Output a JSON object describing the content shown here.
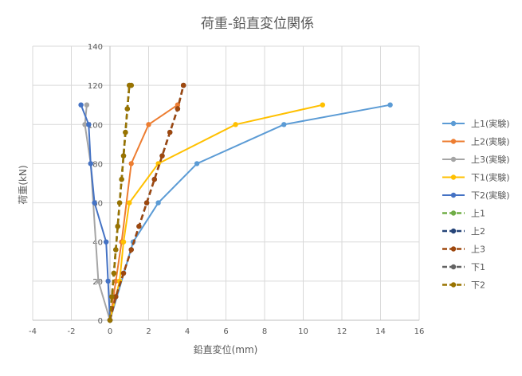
{
  "chart_data": {
    "type": "scatter",
    "title": "荷重-鉛直変位関係",
    "xlabel": "鉛直変位(mm)",
    "ylabel": "荷重(kN)",
    "xlim": [
      -4,
      16
    ],
    "ylim": [
      0,
      140
    ],
    "xticks": [
      -4,
      -2,
      0,
      2,
      4,
      6,
      8,
      10,
      12,
      14,
      16
    ],
    "yticks": [
      0,
      20,
      40,
      60,
      80,
      100,
      120,
      140
    ],
    "grid": "vertical-and-horizontal",
    "legend_position": "right",
    "series": [
      {
        "name": "上1(実験)",
        "color": "#5B9BD5",
        "dash": false,
        "x": [
          0,
          1.2,
          2.5,
          4.5,
          9.0,
          14.5
        ],
        "y": [
          0,
          40,
          60,
          80,
          100,
          110
        ]
      },
      {
        "name": "上2(実験)",
        "color": "#ED7D31",
        "dash": false,
        "x": [
          0,
          0.3,
          0.6,
          1.1,
          2.0,
          3.5
        ],
        "y": [
          0,
          20,
          40,
          80,
          100,
          110
        ]
      },
      {
        "name": "上3(実験)",
        "color": "#A5A5A5",
        "dash": false,
        "x": [
          0,
          -0.6,
          -1.0,
          -1.3,
          -1.2
        ],
        "y": [
          0,
          20,
          80,
          100,
          110
        ]
      },
      {
        "name": "下1(実験)",
        "color": "#FFC000",
        "dash": false,
        "x": [
          0,
          0.5,
          0.7,
          1.0,
          2.5,
          6.5,
          11.0
        ],
        "y": [
          0,
          20,
          40,
          60,
          80,
          100,
          110
        ]
      },
      {
        "name": "下2(実験)",
        "color": "#4472C4",
        "dash": false,
        "x": [
          0,
          -0.1,
          -0.2,
          -0.8,
          -1.0,
          -1.1,
          -1.5
        ],
        "y": [
          0,
          20,
          40,
          60,
          80,
          100,
          110
        ]
      },
      {
        "name": "上1",
        "color": "#70AD47",
        "dash": true,
        "x": [
          0,
          0.1,
          0.2,
          0.3,
          0.4,
          0.5,
          0.6,
          0.7,
          0.8,
          0.9,
          1.0,
          1.1
        ],
        "y": [
          0,
          12,
          24,
          36,
          48,
          60,
          72,
          84,
          96,
          108,
          120,
          120
        ]
      },
      {
        "name": "上2",
        "color": "#264478",
        "dash": true,
        "x": [
          0,
          0.3,
          0.7,
          1.1,
          1.5,
          1.9,
          2.3,
          2.7,
          3.1,
          3.5,
          3.8,
          3.8
        ],
        "y": [
          0,
          12,
          24,
          36,
          48,
          60,
          72,
          84,
          96,
          108,
          120,
          120
        ]
      },
      {
        "name": "上3",
        "color": "#9E480E",
        "dash": true,
        "x": [
          0,
          0.3,
          0.7,
          1.1,
          1.5,
          1.9,
          2.3,
          2.7,
          3.1,
          3.5,
          3.8,
          3.8
        ],
        "y": [
          0,
          12,
          24,
          36,
          48,
          60,
          72,
          84,
          96,
          108,
          120,
          120
        ]
      },
      {
        "name": "下1",
        "color": "#636363",
        "dash": true,
        "x": [
          0,
          0.1,
          0.2,
          0.3,
          0.4,
          0.5,
          0.6,
          0.7,
          0.8,
          0.9,
          1.0,
          1.1
        ],
        "y": [
          0,
          12,
          24,
          36,
          48,
          60,
          72,
          84,
          96,
          108,
          120,
          120
        ]
      },
      {
        "name": "下2",
        "color": "#997300",
        "dash": true,
        "x": [
          0,
          0.1,
          0.2,
          0.3,
          0.4,
          0.5,
          0.6,
          0.7,
          0.8,
          0.9,
          1.0,
          1.1
        ],
        "y": [
          0,
          12,
          24,
          36,
          48,
          60,
          72,
          84,
          96,
          108,
          120,
          120
        ]
      }
    ]
  }
}
